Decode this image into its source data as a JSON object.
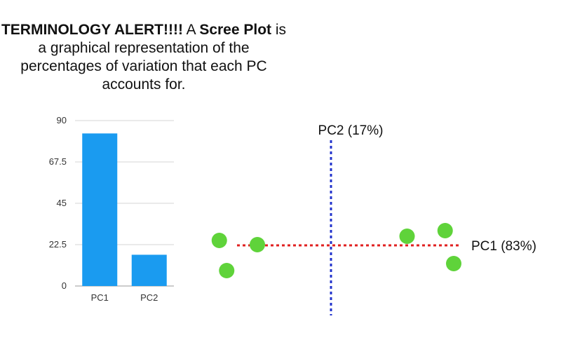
{
  "caption": {
    "part1": "TERMINOLOGY ALERT!!!!",
    "part2": " A ",
    "part3": "Scree Plot",
    "part4": " is a graphical representation of the percentages of variation that each PC accounts for."
  },
  "colors": {
    "bar": "#1a9bf0",
    "pc1_line": "#e02020",
    "pc2_line": "#2233cc",
    "points": "#5fd33a"
  },
  "chart_data": [
    {
      "type": "bar",
      "categories": [
        "PC1",
        "PC2"
      ],
      "values": [
        83,
        17
      ],
      "ylim": [
        0,
        90
      ],
      "yticks": [
        "0",
        "22.5",
        "45",
        "67.5",
        "90"
      ],
      "grid": true
    },
    {
      "type": "scatter",
      "x_axis_label": "PC1 (83%)",
      "y_axis_label": "PC2 (17%)",
      "xlim": [
        -10,
        10
      ],
      "ylim": [
        -10,
        10
      ],
      "points": [
        {
          "x": -9.1,
          "y": 0.7
        },
        {
          "x": -6.0,
          "y": 0.1
        },
        {
          "x": -8.5,
          "y": -3.6
        },
        {
          "x": 6.2,
          "y": 1.3
        },
        {
          "x": 9.3,
          "y": 2.1
        },
        {
          "x": 10.0,
          "y": -2.6
        }
      ]
    }
  ]
}
